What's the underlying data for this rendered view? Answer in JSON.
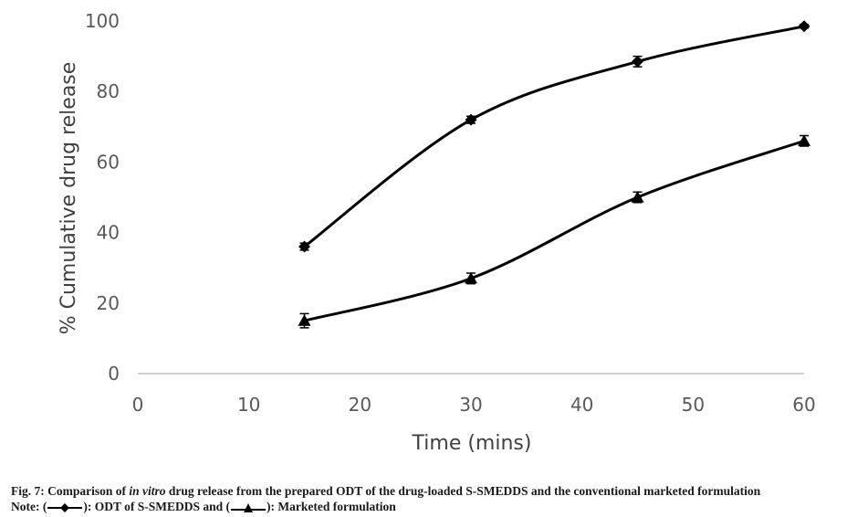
{
  "chart_data": {
    "type": "line",
    "xlabel": "Time (mins)",
    "ylabel": "% Cumulative drug release",
    "xlim": [
      0,
      60
    ],
    "ylim": [
      0,
      100
    ],
    "xticks": [
      0,
      10,
      20,
      30,
      40,
      50,
      60
    ],
    "yticks": [
      0,
      20,
      40,
      60,
      80,
      100
    ],
    "grid": false,
    "series": [
      {
        "marker": "diamond",
        "color": "#000000",
        "x": [
          15,
          30,
          45,
          60
        ],
        "y": [
          36,
          72,
          88.5,
          98.5
        ],
        "error": [
          1,
          1,
          1.5,
          0.5
        ]
      },
      {
        "marker": "triangle",
        "color": "#000000",
        "x": [
          15,
          30,
          45,
          60
        ],
        "y": [
          15,
          27,
          50,
          66
        ],
        "error": [
          2,
          1.5,
          1.5,
          1.5
        ]
      }
    ]
  },
  "caption": {
    "fig_prefix": "Fig. 7: Comparison of ",
    "fig_italic": "in vitro",
    "fig_suffix": " drug release from the prepared ODT of the drug-loaded S-SMEDDS and the conventional marketed formulation",
    "note_prefix": "Note: (",
    "note_series1": "): ODT of S-SMEDDS and (",
    "note_series2": "): Marketed formulation"
  }
}
